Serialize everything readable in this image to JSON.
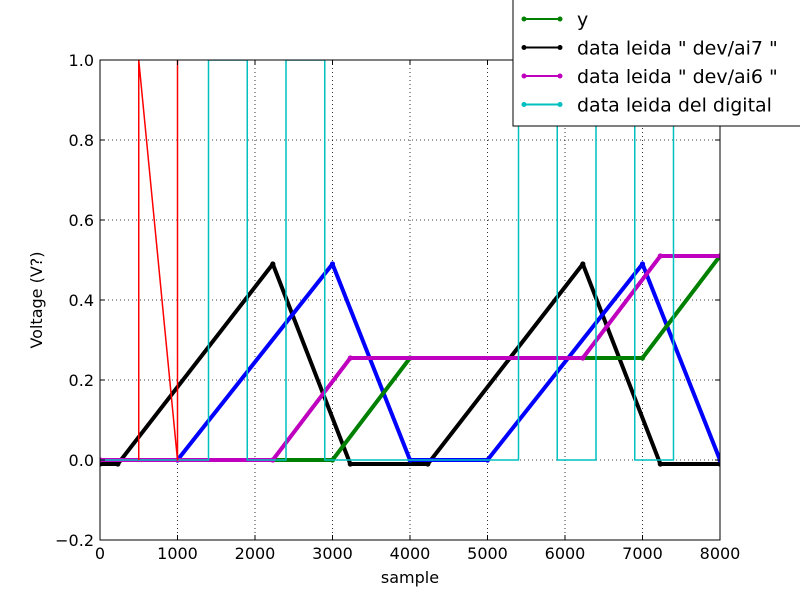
{
  "chart_data": {
    "type": "line",
    "title": "",
    "xlabel": "sample",
    "ylabel": "Voltage (V?)",
    "xlim": [
      0,
      8000
    ],
    "ylim": [
      -0.2,
      1.0
    ],
    "xticks": [
      0,
      1000,
      2000,
      3000,
      4000,
      5000,
      6000,
      7000,
      8000
    ],
    "yticks": [
      -0.2,
      0.0,
      0.2,
      0.4,
      0.6,
      0.8,
      1.0
    ],
    "xtick_labels": [
      "0",
      "1000",
      "2000",
      "3000",
      "4000",
      "5000",
      "6000",
      "7000",
      "8000"
    ],
    "ytick_labels": [
      "−0.2",
      "0.0",
      "0.2",
      "0.4",
      "0.6",
      "0.8",
      "1.0"
    ],
    "grid": true,
    "legend_position": "top-right",
    "legend_entries": [
      "y",
      "data leida \" dev/ai7 \"",
      "data leida \" dev/ai6 \"",
      "data leida del digital"
    ],
    "series": [
      {
        "name": "data leida \" dev/ai7 \"",
        "color": "#000000",
        "x": [
          0,
          230,
          2230,
          3230,
          4230,
          6230,
          7230,
          8000
        ],
        "y": [
          -0.01,
          -0.01,
          0.49,
          -0.01,
          -0.01,
          0.49,
          -0.01,
          -0.01
        ]
      },
      {
        "name": "",
        "color": "#0000ff",
        "x": [
          0,
          1000,
          3000,
          4000,
          5000,
          7000,
          8000
        ],
        "y": [
          0.0,
          0.0,
          0.49,
          0.0,
          0.0,
          0.49,
          0.0
        ]
      },
      {
        "name": "y",
        "color": "#008000",
        "x": [
          0,
          3000,
          4000,
          7000,
          8000
        ],
        "y": [
          0.0,
          0.0,
          0.255,
          0.255,
          0.51
        ]
      },
      {
        "name": "data leida \" dev/ai6 \"",
        "color": "#bf00bf",
        "x": [
          0,
          2230,
          3230,
          6230,
          7230,
          8000
        ],
        "y": [
          0.0,
          0.0,
          0.255,
          0.255,
          0.51,
          0.51
        ]
      },
      {
        "name": "data leida del digital",
        "color": "#00bfbf",
        "x": [
          0,
          1400,
          1400,
          1900,
          1900,
          2400,
          2400,
          2900,
          2900,
          5400,
          5400,
          5900,
          5900,
          6400,
          6400,
          6900,
          6900,
          7400,
          7400,
          8000
        ],
        "y": [
          0,
          0,
          1,
          1,
          0,
          0,
          1,
          1,
          0,
          0,
          1,
          1,
          0,
          0,
          1,
          1,
          0,
          0,
          1,
          1
        ]
      },
      {
        "name": "",
        "color": "#ff0000",
        "x": [
          500,
          500,
          1000,
          1000
        ],
        "y": [
          0,
          1,
          0,
          1
        ]
      }
    ]
  }
}
